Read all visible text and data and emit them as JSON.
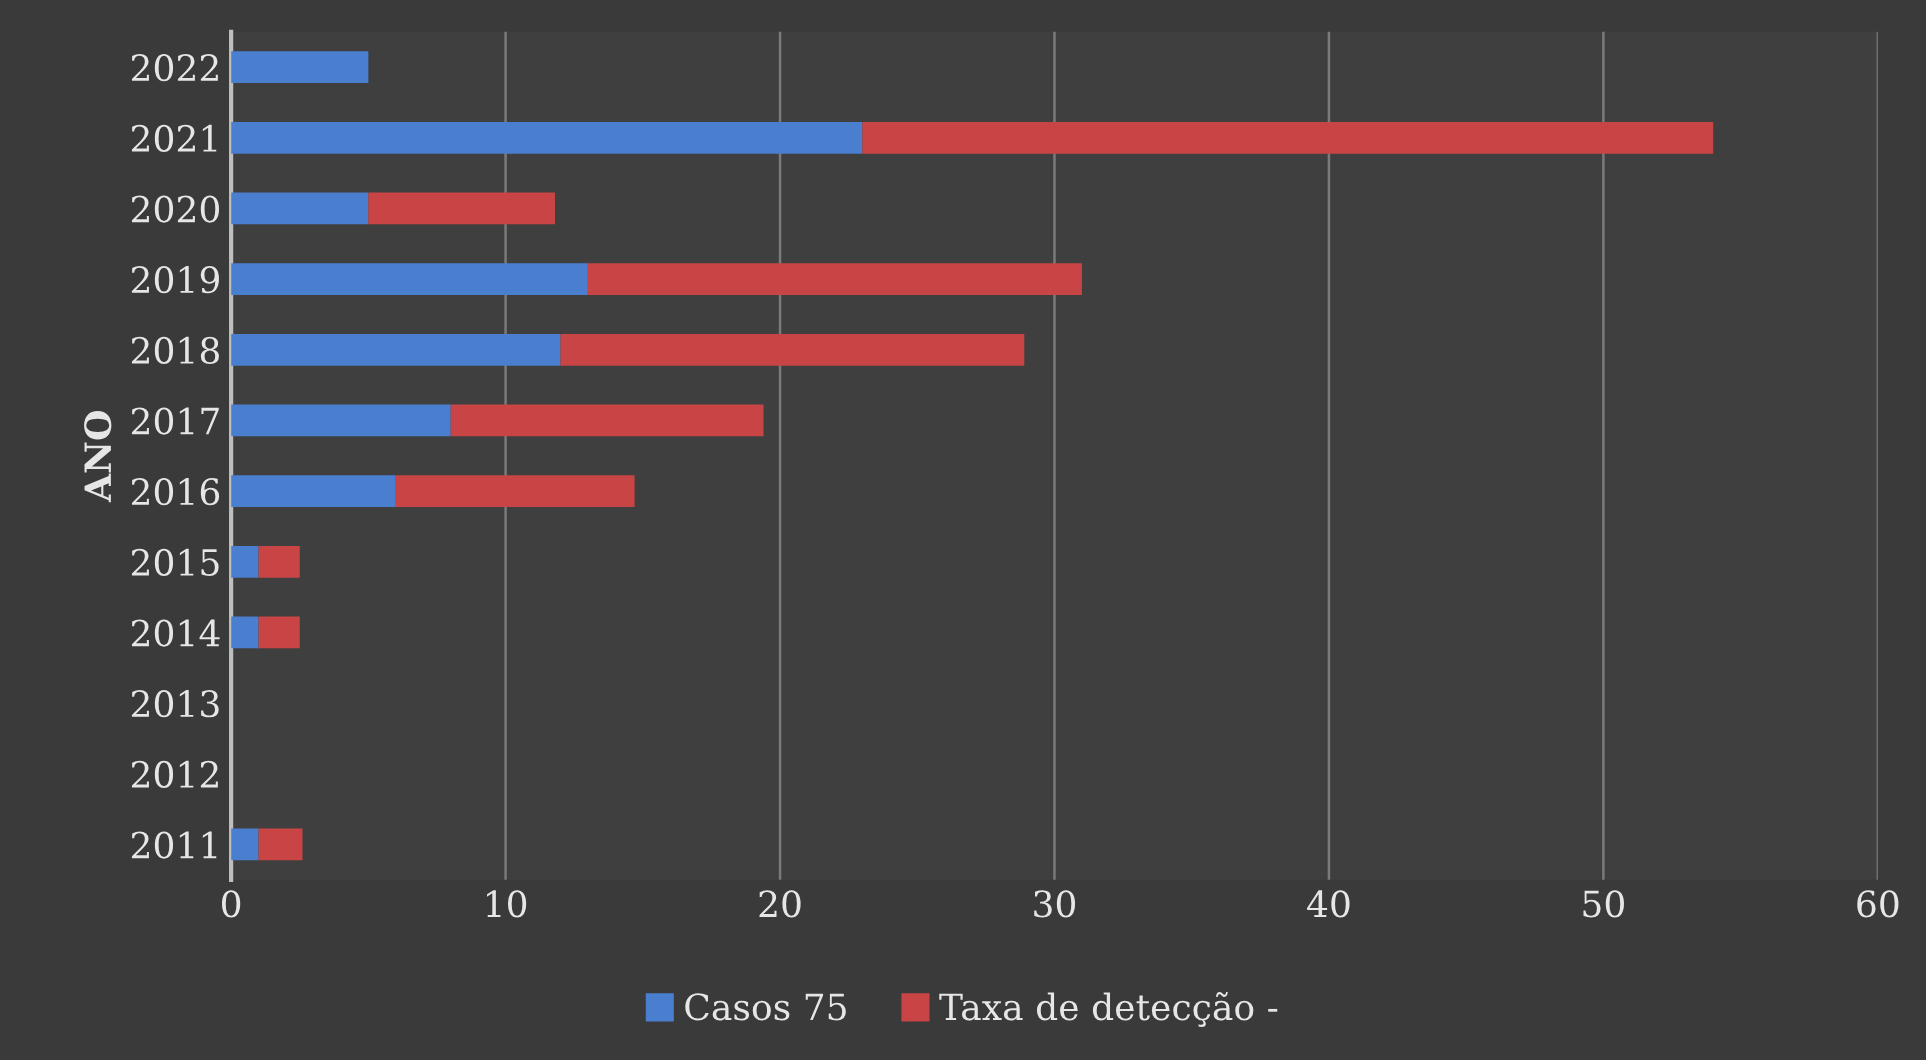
{
  "chart_data": {
    "type": "bar",
    "orientation": "horizontal",
    "stacked": true,
    "ylabel": "ANO",
    "categories": [
      "2022",
      "2021",
      "2020",
      "2019",
      "2018",
      "2017",
      "2016",
      "2015",
      "2014",
      "2013",
      "2012",
      "2011"
    ],
    "series": [
      {
        "name": "Casos 75",
        "color": "#4a7fcf",
        "values": [
          5,
          23,
          5,
          13,
          12,
          8,
          6,
          1,
          1,
          0,
          0,
          1
        ]
      },
      {
        "name": "Taxa de detecção -",
        "color": "#c94545",
        "values": [
          0,
          31,
          6.8,
          18,
          16.9,
          11.4,
          8.7,
          1.5,
          1.5,
          0,
          0,
          1.6
        ]
      }
    ],
    "xlim": [
      0,
      60
    ],
    "xticks": [
      0,
      10,
      20,
      30,
      40,
      50,
      60
    ],
    "grid": "x",
    "legend": "bottom"
  }
}
